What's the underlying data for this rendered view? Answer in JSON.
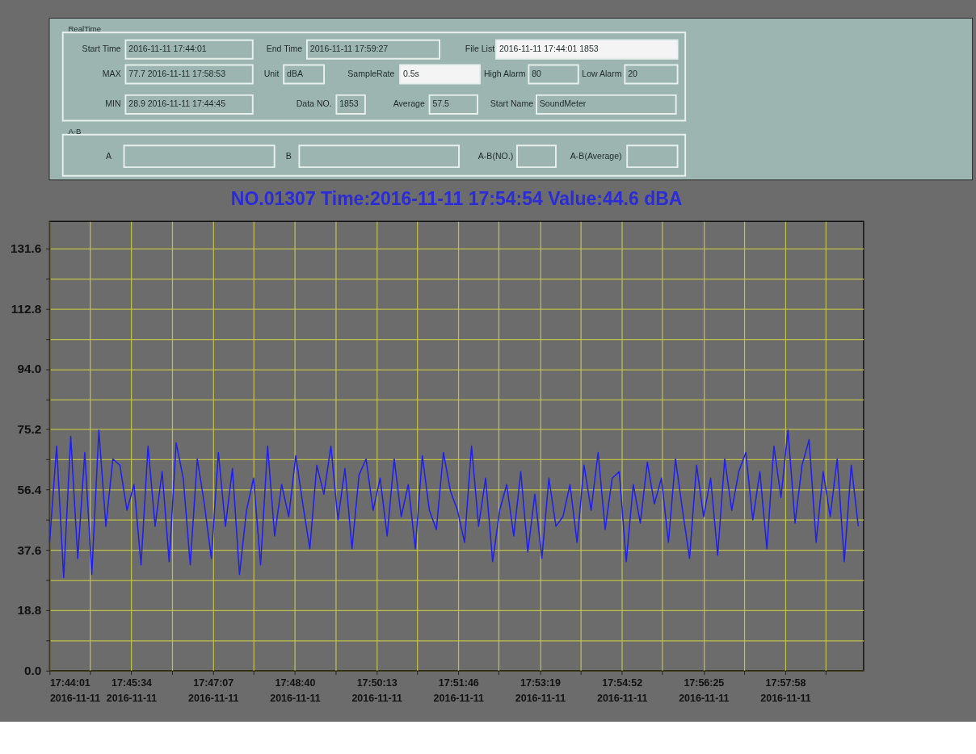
{
  "chart_data": {
    "type": "line",
    "title": "NO.01307  Time:2016-11-11 17:54:54  Value:44.6  dBA",
    "annotations": [
      "RealTime",
      "Start Time",
      "2016-11-11 17:44:01",
      "End Time",
      "2016-11-11 17:59:27",
      "File List",
      "2016-11-11 17:44:01 1853",
      "MAX",
      "77.7 2016-11-11 17:58:53",
      "Unit",
      "dBA",
      "SampleRate",
      "0.5s",
      "High Alarm",
      "80",
      "Low Alarm",
      "20",
      "MIN",
      "28.9 2016-11-11 17:44:45",
      "Data NO.",
      "1853",
      "Average",
      "57.5",
      "Start Name",
      "SoundMeter",
      "A-B",
      "A",
      "B",
      "A-B(NO.)",
      "A-B(Average)"
    ],
    "x": [
      "2016-11-11T17:44:01",
      "2016-11-11T17:44:09",
      "2016-11-11T17:44:17",
      "2016-11-11T17:44:25",
      "2016-11-11T17:44:33",
      "2016-11-11T17:44:41",
      "2016-11-11T17:44:49",
      "2016-11-11T17:44:57",
      "2016-11-11T17:45:05",
      "2016-11-11T17:45:13",
      "2016-11-11T17:45:21",
      "2016-11-11T17:45:29",
      "2016-11-11T17:45:37",
      "2016-11-11T17:45:45",
      "2016-11-11T17:45:53",
      "2016-11-11T17:46:01",
      "2016-11-11T17:46:09",
      "2016-11-11T17:46:17",
      "2016-11-11T17:46:25",
      "2016-11-11T17:46:33",
      "2016-11-11T17:46:41",
      "2016-11-11T17:46:49",
      "2016-11-11T17:46:57",
      "2016-11-11T17:47:05",
      "2016-11-11T17:47:13",
      "2016-11-11T17:47:21",
      "2016-11-11T17:47:29",
      "2016-11-11T17:47:37",
      "2016-11-11T17:47:45",
      "2016-11-11T17:47:53",
      "2016-11-11T17:48:01",
      "2016-11-11T17:48:09",
      "2016-11-11T17:48:17",
      "2016-11-11T17:48:25",
      "2016-11-11T17:48:33",
      "2016-11-11T17:48:41",
      "2016-11-11T17:48:49",
      "2016-11-11T17:48:57",
      "2016-11-11T17:49:05",
      "2016-11-11T17:49:13",
      "2016-11-11T17:49:21",
      "2016-11-11T17:49:29",
      "2016-11-11T17:49:37",
      "2016-11-11T17:49:45",
      "2016-11-11T17:49:53",
      "2016-11-11T17:50:01",
      "2016-11-11T17:50:09",
      "2016-11-11T17:50:17",
      "2016-11-11T17:50:25",
      "2016-11-11T17:50:33",
      "2016-11-11T17:50:41",
      "2016-11-11T17:50:49",
      "2016-11-11T17:50:57",
      "2016-11-11T17:51:05",
      "2016-11-11T17:51:13",
      "2016-11-11T17:51:21",
      "2016-11-11T17:51:29",
      "2016-11-11T17:51:37",
      "2016-11-11T17:51:45",
      "2016-11-11T17:51:53",
      "2016-11-11T17:52:01",
      "2016-11-11T17:52:09",
      "2016-11-11T17:52:17",
      "2016-11-11T17:52:25",
      "2016-11-11T17:52:33",
      "2016-11-11T17:52:41",
      "2016-11-11T17:52:49",
      "2016-11-11T17:52:57",
      "2016-11-11T17:53:05",
      "2016-11-11T17:53:13",
      "2016-11-11T17:53:21",
      "2016-11-11T17:53:29",
      "2016-11-11T17:53:37",
      "2016-11-11T17:53:45",
      "2016-11-11T17:53:53",
      "2016-11-11T17:54:01",
      "2016-11-11T17:54:09",
      "2016-11-11T17:54:17",
      "2016-11-11T17:54:25",
      "2016-11-11T17:54:33",
      "2016-11-11T17:54:41",
      "2016-11-11T17:54:49",
      "2016-11-11T17:54:57",
      "2016-11-11T17:55:05",
      "2016-11-11T17:55:13",
      "2016-11-11T17:55:21",
      "2016-11-11T17:55:29",
      "2016-11-11T17:55:37",
      "2016-11-11T17:55:45",
      "2016-11-11T17:55:53",
      "2016-11-11T17:56:01",
      "2016-11-11T17:56:09",
      "2016-11-11T17:56:17",
      "2016-11-11T17:56:25",
      "2016-11-11T17:56:33",
      "2016-11-11T17:56:41",
      "2016-11-11T17:56:49",
      "2016-11-11T17:56:57",
      "2016-11-11T17:57:05",
      "2016-11-11T17:57:13",
      "2016-11-11T17:57:21",
      "2016-11-11T17:57:29",
      "2016-11-11T17:57:37",
      "2016-11-11T17:57:45",
      "2016-11-11T17:57:53",
      "2016-11-11T17:58:01",
      "2016-11-11T17:58:09",
      "2016-11-11T17:58:17",
      "2016-11-11T17:58:25",
      "2016-11-11T17:58:33",
      "2016-11-11T17:58:41",
      "2016-11-11T17:58:49",
      "2016-11-11T17:58:57",
      "2016-11-11T17:59:05",
      "2016-11-11T17:59:13",
      "2016-11-11T17:59:21"
    ],
    "series": [
      {
        "color": "#1f1ff0",
        "values": [
          40,
          70,
          29,
          73,
          35,
          68,
          30,
          75,
          45,
          66,
          64,
          50,
          58,
          33,
          70,
          45,
          62,
          34,
          71,
          60,
          33,
          66,
          52,
          35,
          68,
          45,
          63,
          30,
          50,
          60,
          33,
          70,
          42,
          58,
          48,
          67,
          52,
          38,
          64,
          55,
          70,
          47,
          63,
          38,
          61,
          66,
          50,
          60,
          42,
          66,
          48,
          58,
          38,
          67,
          50,
          44,
          68,
          56,
          50,
          40,
          70,
          45,
          60,
          34,
          50,
          58,
          42,
          62,
          37,
          55,
          35,
          60,
          45,
          48,
          58,
          40,
          64,
          50,
          68,
          44,
          60,
          62,
          34,
          58,
          46,
          65,
          52,
          60,
          40,
          66,
          50,
          35,
          64,
          48,
          60,
          36,
          66,
          50,
          62,
          68,
          47,
          62,
          38,
          70,
          54,
          75,
          46,
          64,
          72,
          40,
          62,
          48,
          66,
          34,
          64,
          45
        ]
      }
    ],
    "xlim": [
      "2016-11-11T17:44:01",
      "2016-11-11T17:59:27"
    ],
    "xticks": [
      {
        "value": "2016-11-11T17:44:01",
        "label": "17:44:01 2016-11-11"
      },
      {
        "value": "2016-11-11T17:44:47",
        "label": null
      },
      {
        "value": "2016-11-11T17:45:34",
        "label": "17:45:34 2016-11-11"
      },
      {
        "value": "2016-11-11T17:46:20",
        "label": null
      },
      {
        "value": "2016-11-11T17:47:07",
        "label": "17:47:07 2016-11-11"
      },
      {
        "value": "2016-11-11T17:47:53",
        "label": null
      },
      {
        "value": "2016-11-11T17:48:40",
        "label": "17:48:40 2016-11-11"
      },
      {
        "value": "2016-11-11T17:49:26",
        "label": null
      },
      {
        "value": "2016-11-11T17:50:13",
        "label": "17:50:13 2016-11-11"
      },
      {
        "value": "2016-11-11T17:50:59",
        "label": null
      },
      {
        "value": "2016-11-11T17:51:46",
        "label": "17:51:46 2016-11-11"
      },
      {
        "value": "2016-11-11T17:52:32",
        "label": null
      },
      {
        "value": "2016-11-11T17:53:19",
        "label": "17:53:19 2016-11-11"
      },
      {
        "value": "2016-11-11T17:54:05",
        "label": null
      },
      {
        "value": "2016-11-11T17:54:52",
        "label": "17:54:52 2016-11-11"
      },
      {
        "value": "2016-11-11T17:55:38",
        "label": null
      },
      {
        "value": "2016-11-11T17:56:25",
        "label": "17:56:25 2016-11-11"
      },
      {
        "value": "2016-11-11T17:57:11",
        "label": null
      },
      {
        "value": "2016-11-11T17:57:58",
        "label": "17:57:58 2016-11-11"
      },
      {
        "value": "2016-11-11T17:58:44",
        "label": null
      }
    ],
    "ylim": [
      0,
      140
    ],
    "yticks": [
      {
        "value": 0,
        "label": "0.0"
      },
      {
        "value": 9.4,
        "label": null
      },
      18.8,
      {
        "value": 28.2,
        "label": null
      },
      37.6,
      {
        "value": 47,
        "label": null
      },
      56.4,
      {
        "value": 65.8,
        "label": null
      },
      75.2,
      {
        "value": 84.6,
        "label": null
      },
      {
        "value": 94,
        "label": "94.0"
      },
      {
        "value": 103.4,
        "label": null
      },
      112.8,
      {
        "value": 122.2,
        "label": null
      },
      131.6
    ],
    "grid": true,
    "marker": "none",
    "line_style": "solid"
  }
}
